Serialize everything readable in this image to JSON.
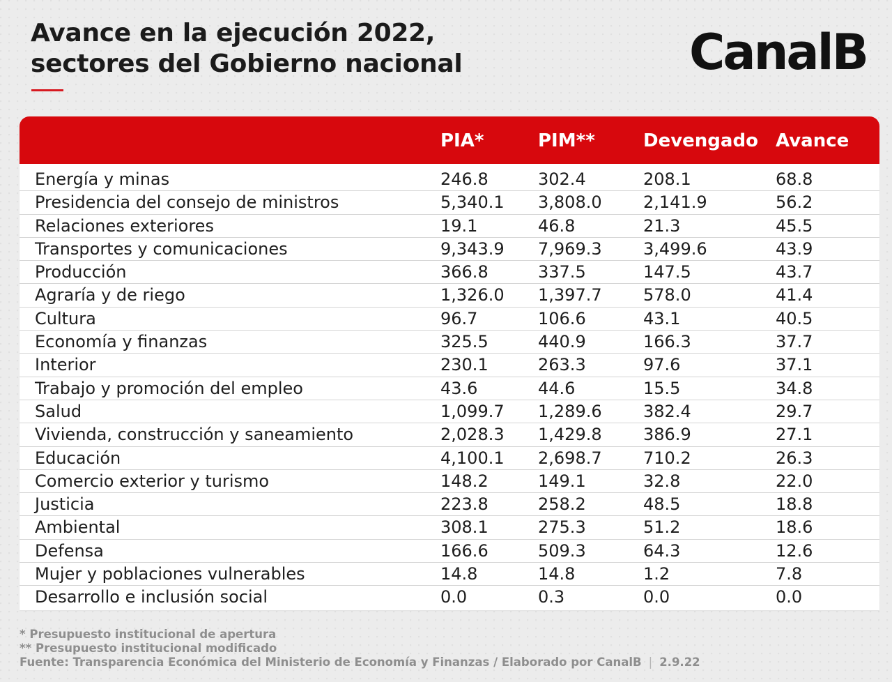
{
  "header": {
    "title_line1": "Avance en la ejecución 2022,",
    "title_line2": "sectores del Gobierno nacional",
    "logo": "CanalB",
    "accent_color": "#d7080d"
  },
  "chart_data": {
    "type": "table",
    "title": "Avance en la ejecución 2022, sectores del Gobierno nacional",
    "columns": [
      "",
      "PIA*",
      "PIM**",
      "Devengado",
      "Avance"
    ],
    "rows": [
      {
        "sector": "Energía y minas",
        "pia": "246.8",
        "pim": "302.4",
        "devengado": "208.1",
        "avance": "68.8"
      },
      {
        "sector": "Presidencia del consejo de ministros",
        "pia": "5,340.1",
        "pim": "3,808.0",
        "devengado": "2,141.9",
        "avance": "56.2"
      },
      {
        "sector": "Relaciones exteriores",
        "pia": "19.1",
        "pim": "46.8",
        "devengado": "21.3",
        "avance": "45.5"
      },
      {
        "sector": "Transportes y comunicaciones",
        "pia": "9,343.9",
        "pim": "7,969.3",
        "devengado": "3,499.6",
        "avance": "43.9"
      },
      {
        "sector": "Producción",
        "pia": "366.8",
        "pim": "337.5",
        "devengado": "147.5",
        "avance": "43.7"
      },
      {
        "sector": "Agraría y de riego",
        "pia": "1,326.0",
        "pim": "1,397.7",
        "devengado": "578.0",
        "avance": "41.4"
      },
      {
        "sector": "Cultura",
        "pia": "96.7",
        "pim": "106.6",
        "devengado": "43.1",
        "avance": "40.5"
      },
      {
        "sector": "Economía y finanzas",
        "pia": "325.5",
        "pim": "440.9",
        "devengado": "166.3",
        "avance": "37.7"
      },
      {
        "sector": "Interior",
        "pia": "230.1",
        "pim": "263.3",
        "devengado": "97.6",
        "avance": "37.1"
      },
      {
        "sector": "Trabajo y promoción del empleo",
        "pia": "43.6",
        "pim": "44.6",
        "devengado": "15.5",
        "avance": "34.8"
      },
      {
        "sector": "Salud",
        "pia": "1,099.7",
        "pim": "1,289.6",
        "devengado": "382.4",
        "avance": "29.7"
      },
      {
        "sector": "Vivienda, construcción y saneamiento",
        "pia": "2,028.3",
        "pim": "1,429.8",
        "devengado": "386.9",
        "avance": "27.1"
      },
      {
        "sector": "Educación",
        "pia": "4,100.1",
        "pim": "2,698.7",
        "devengado": "710.2",
        "avance": "26.3"
      },
      {
        "sector": "Comercio exterior y turismo",
        "pia": "148.2",
        "pim": "149.1",
        "devengado": "32.8",
        "avance": "22.0"
      },
      {
        "sector": "Justicia",
        "pia": "223.8",
        "pim": "258.2",
        "devengado": "48.5",
        "avance": "18.8"
      },
      {
        "sector": "Ambiental",
        "pia": "308.1",
        "pim": "275.3",
        "devengado": "51.2",
        "avance": "18.6"
      },
      {
        "sector": "Defensa",
        "pia": "166.6",
        "pim": "509.3",
        "devengado": "64.3",
        "avance": "12.6"
      },
      {
        "sector": "Mujer y poblaciones vulnerables",
        "pia": "14.8",
        "pim": "14.8",
        "devengado": "1.2",
        "avance": "7.8"
      },
      {
        "sector": "Desarrollo e inclusión social",
        "pia": "0.0",
        "pim": "0.3",
        "devengado": "0.0",
        "avance": "0.0"
      }
    ]
  },
  "footer": {
    "note1": "* Presupuesto institucional de apertura",
    "note2": "** Presupuesto institucional modificado",
    "source": "Fuente: Transparencia Económica del Ministerio de Economía y Finanzas / Elaborado por CanalB",
    "separator": "|",
    "date": "2.9.22"
  }
}
